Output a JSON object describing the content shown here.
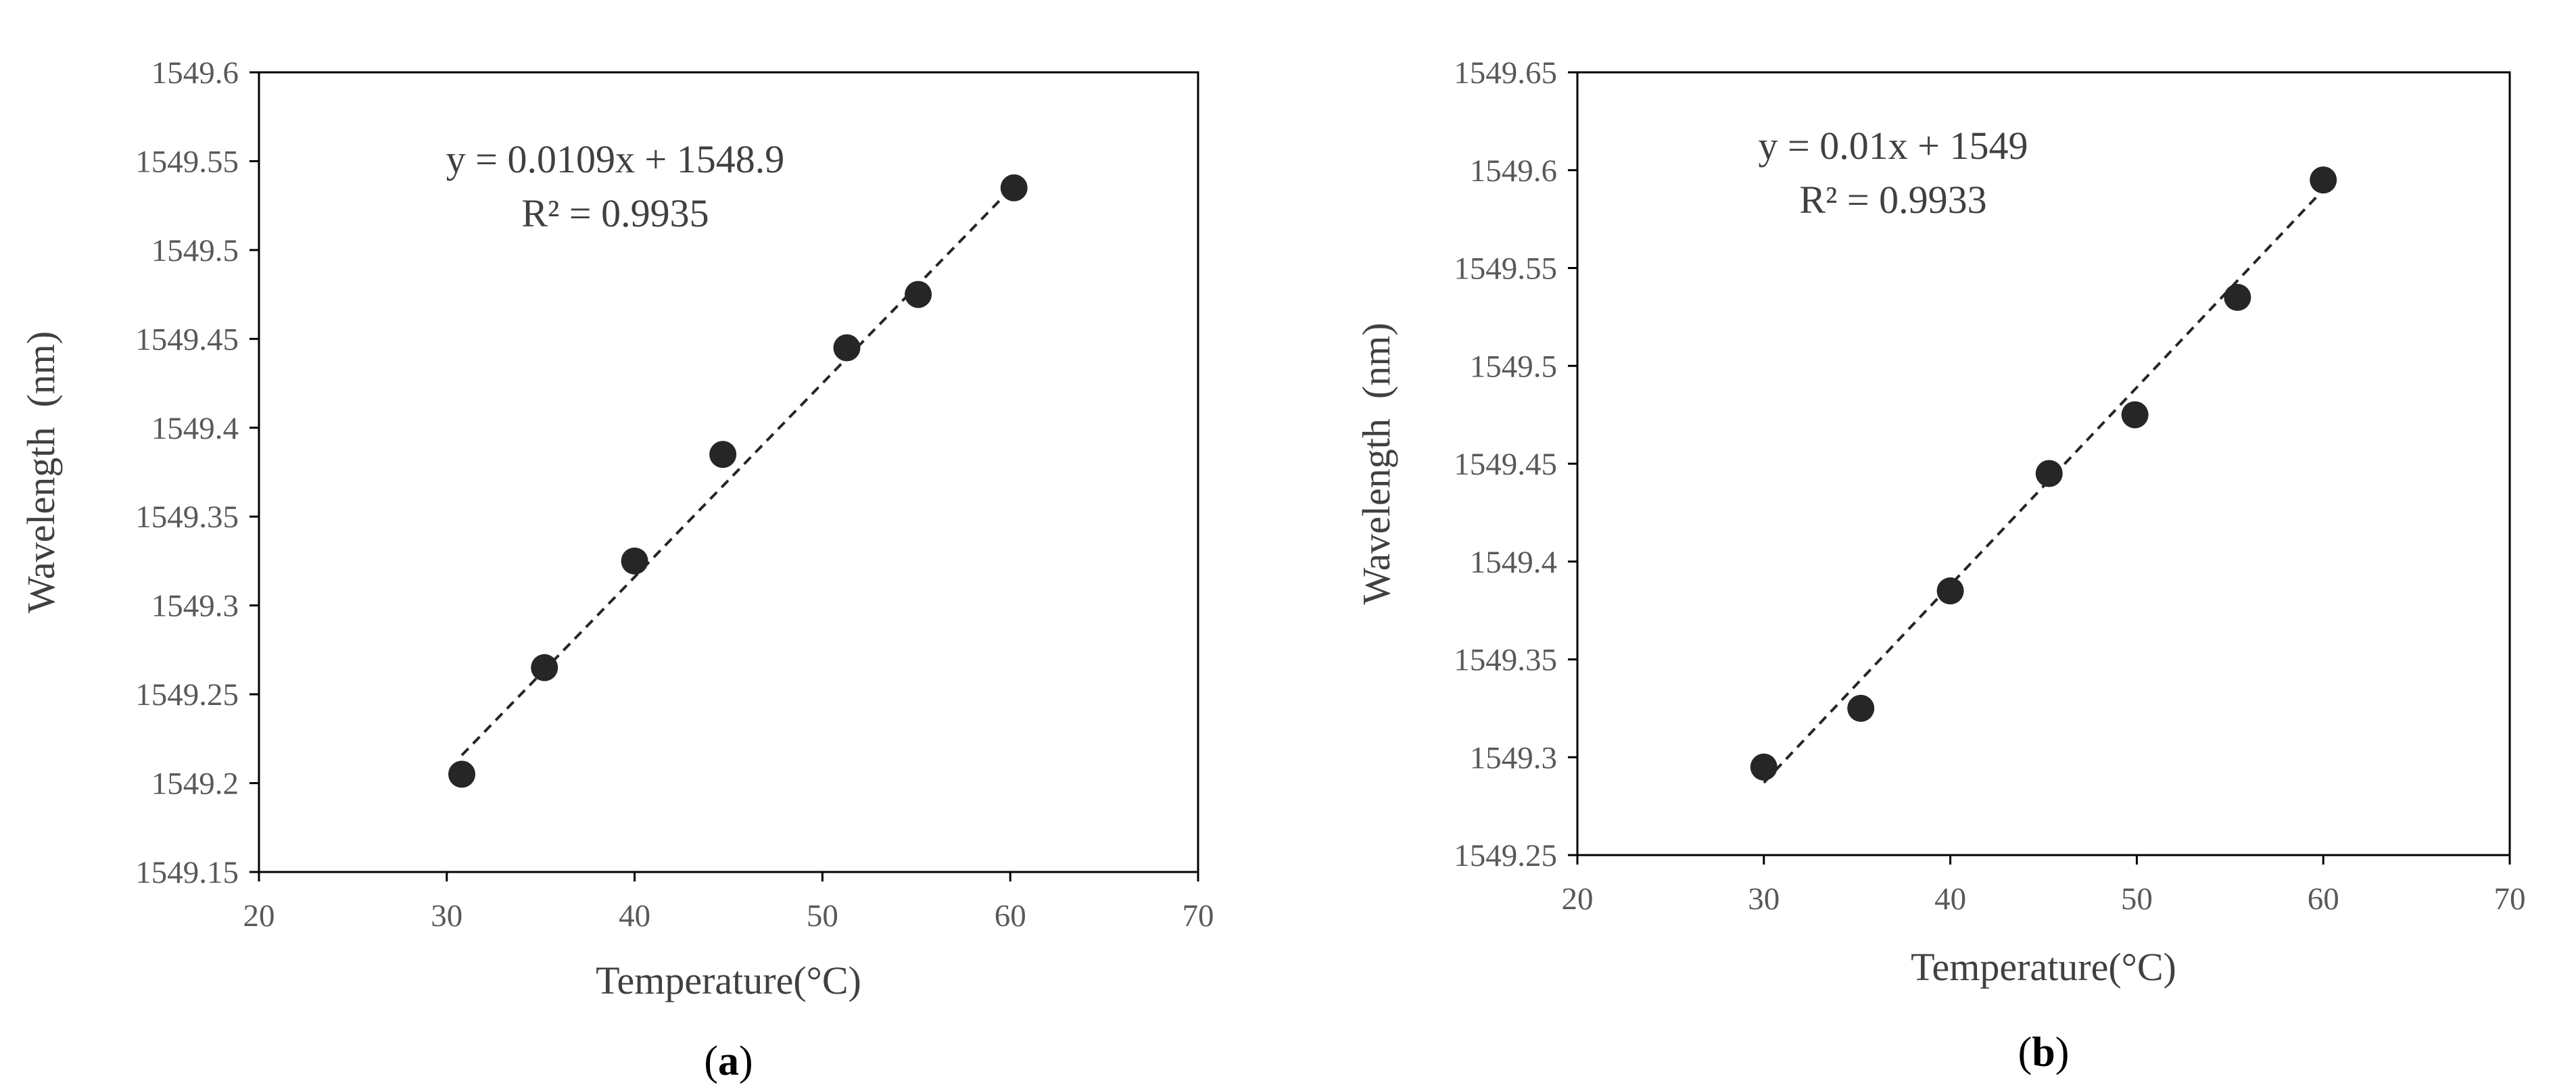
{
  "chart_data": [
    {
      "type": "scatter",
      "panel_label": "a",
      "xlabel": "Temperature(°C)",
      "ylabel": "Wavelength  (nm)",
      "xlim": [
        20,
        70
      ],
      "ylim": [
        1549.15,
        1549.6
      ],
      "xticks": [
        20,
        30,
        40,
        50,
        60,
        70
      ],
      "yticks": [
        1549.15,
        1549.2,
        1549.25,
        1549.3,
        1549.35,
        1549.4,
        1549.45,
        1549.5,
        1549.55,
        1549.6
      ],
      "xtick_labels": [
        "20",
        "30",
        "40",
        "50",
        "60",
        "70"
      ],
      "ytick_labels": [
        "1549.15",
        "1549.2",
        "1549.25",
        "1549.3",
        "1549.35",
        "1549.4",
        "1549.45",
        "1549.5",
        "1549.55",
        "1549.6"
      ],
      "grid": false,
      "points": [
        {
          "x": 30.8,
          "y": 1549.205
        },
        {
          "x": 35.2,
          "y": 1549.265
        },
        {
          "x": 40.0,
          "y": 1549.325
        },
        {
          "x": 44.7,
          "y": 1549.385
        },
        {
          "x": 51.3,
          "y": 1549.445
        },
        {
          "x": 55.1,
          "y": 1549.475
        },
        {
          "x": 60.2,
          "y": 1549.535
        }
      ],
      "trendline": {
        "x": [
          30.8,
          60.2
        ],
        "y": [
          1549.2157,
          1549.5362
        ],
        "equation": "y = 0.0109x + 1548.9",
        "r2": "R² = 0.9935"
      },
      "colors": {
        "points": "#262626",
        "trendline": "#262626",
        "frame": "#000000"
      }
    },
    {
      "type": "scatter",
      "panel_label": "b",
      "xlabel": "Temperature(°C)",
      "ylabel": "Wavelength  (nm)",
      "xlim": [
        20,
        70
      ],
      "ylim": [
        1549.25,
        1549.65
      ],
      "xticks": [
        20,
        30,
        40,
        50,
        60,
        70
      ],
      "yticks": [
        1549.25,
        1549.3,
        1549.35,
        1549.4,
        1549.45,
        1549.5,
        1549.55,
        1549.6,
        1549.65
      ],
      "xtick_labels": [
        "20",
        "30",
        "40",
        "50",
        "60",
        "70"
      ],
      "ytick_labels": [
        "1549.25",
        "1549.3",
        "1549.35",
        "1549.4",
        "1549.45",
        "1549.5",
        "1549.55",
        "1549.6",
        "1549.65"
      ],
      "grid": false,
      "points": [
        {
          "x": 30.0,
          "y": 1549.295
        },
        {
          "x": 35.2,
          "y": 1549.325
        },
        {
          "x": 40.0,
          "y": 1549.385
        },
        {
          "x": 45.3,
          "y": 1549.445
        },
        {
          "x": 49.9,
          "y": 1549.475
        },
        {
          "x": 55.4,
          "y": 1549.535
        },
        {
          "x": 60.0,
          "y": 1549.595
        }
      ],
      "trendline": {
        "x": [
          30.0,
          60.0
        ],
        "y": [
          1549.287,
          1549.59
        ],
        "equation": "y = 0.01x + 1549",
        "r2": "R² = 0.9933"
      },
      "colors": {
        "points": "#262626",
        "trendline": "#262626",
        "frame": "#000000"
      }
    }
  ]
}
